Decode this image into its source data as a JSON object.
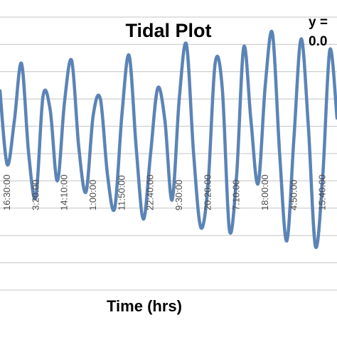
{
  "chart_data": {
    "type": "line",
    "title": "Tidal Plot",
    "xlabel": "Time (hrs)",
    "ylabel": "",
    "equation_lines": [
      "y =",
      "0.0"
    ],
    "grid": true,
    "ylim": [
      0,
      10
    ],
    "y_gridlines": [
      0,
      1,
      2,
      3,
      4,
      5,
      6,
      7,
      8,
      9,
      10
    ],
    "tick_labels": [
      "16:30:00",
      "3:20:00",
      "14:10:00",
      "1:00:00",
      "11:50:00",
      "22:40:00",
      "9:30:00",
      "20:20:00",
      "7:10:00",
      "18:00:00",
      "4:50:00",
      "15:40:00"
    ],
    "tick_positions": [
      0,
      4,
      8,
      12,
      16,
      20,
      24,
      28,
      32,
      36,
      40,
      44
    ],
    "x": [
      0,
      1,
      2,
      3,
      4,
      5,
      6,
      7,
      8,
      9,
      10,
      11,
      12,
      13,
      14,
      15,
      16,
      17,
      18,
      19,
      20,
      21,
      22,
      23,
      24,
      25,
      26,
      27,
      28,
      29,
      30,
      31,
      32,
      33,
      34,
      35,
      36,
      37,
      38,
      39,
      40,
      41,
      42,
      43,
      44,
      45,
      46,
      47
    ],
    "series": [
      {
        "values": [
          7.3,
          4.6,
          6.2,
          8.3,
          5.0,
          3.4,
          7.1,
          6.6,
          4.0,
          6.9,
          8.4,
          5.2,
          3.6,
          6.4,
          7.0,
          4.2,
          3.0,
          6.4,
          8.6,
          5.2,
          2.6,
          5.0,
          7.4,
          6.2,
          3.3,
          7.0,
          9.0,
          5.0,
          2.3,
          3.8,
          8.3,
          7.4,
          2.2,
          4.2,
          8.9,
          6.2,
          3.9,
          7.5,
          9.4,
          5.0,
          1.8,
          5.6,
          9.2,
          6.0,
          1.6,
          4.1,
          8.8,
          6.3
        ]
      }
    ],
    "line_color": "#5b84b6"
  }
}
